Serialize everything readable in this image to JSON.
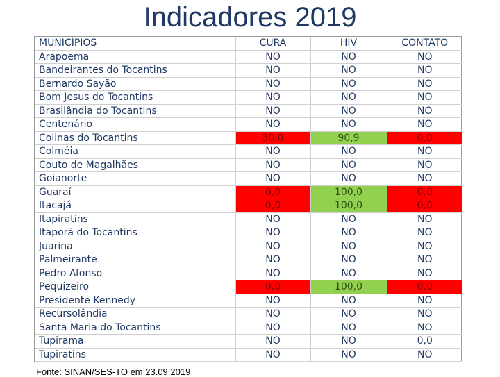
{
  "title": "Indicadores 2019",
  "table": {
    "headers": {
      "municipio": "MUNICÍPIOS",
      "cura": "CURA",
      "hiv": "HIV",
      "contato": "CONTATO"
    },
    "highlight_colors": {
      "red": "#ff0000",
      "green": "#92d050"
    },
    "rows": [
      {
        "municipio": "Arapoema",
        "cura": "NO",
        "hiv": "NO",
        "contato": "NO"
      },
      {
        "municipio": "Bandeirantes do Tocantins",
        "cura": "NO",
        "hiv": "NO",
        "contato": "NO"
      },
      {
        "municipio": "Bernardo Sayão",
        "cura": "NO",
        "hiv": "NO",
        "contato": "NO"
      },
      {
        "municipio": "Bom Jesus do Tocantins",
        "cura": "NO",
        "hiv": "NO",
        "contato": "NO"
      },
      {
        "municipio": "Brasilândia do Tocantins",
        "cura": "NO",
        "hiv": "NO",
        "contato": "NO"
      },
      {
        "municipio": "Centenário",
        "cura": "NO",
        "hiv": "NO",
        "contato": "NO"
      },
      {
        "municipio": "Colinas do Tocantins",
        "cura": "30,0",
        "hiv": "90,9",
        "contato": "0,0",
        "cura_color": "red",
        "hiv_color": "green",
        "contato_color": "red"
      },
      {
        "municipio": "Colméia",
        "cura": "NO",
        "hiv": "NO",
        "contato": "NO"
      },
      {
        "municipio": "Couto de Magalhães",
        "cura": "NO",
        "hiv": "NO",
        "contato": "NO"
      },
      {
        "municipio": "Goianorte",
        "cura": "NO",
        "hiv": "NO",
        "contato": "NO"
      },
      {
        "municipio": "Guaraí",
        "cura": "0,0",
        "hiv": "100,0",
        "contato": "0,0",
        "cura_color": "red",
        "hiv_color": "green",
        "contato_color": "red"
      },
      {
        "municipio": "Itacajá",
        "cura": "0,0",
        "hiv": "100,0",
        "contato": "0,0",
        "cura_color": "red",
        "hiv_color": "green",
        "contato_color": "red"
      },
      {
        "municipio": "Itapiratins",
        "cura": "NO",
        "hiv": "NO",
        "contato": "NO"
      },
      {
        "municipio": "Itaporã do Tocantins",
        "cura": "NO",
        "hiv": "NO",
        "contato": "NO"
      },
      {
        "municipio": "Juarina",
        "cura": "NO",
        "hiv": "NO",
        "contato": "NO"
      },
      {
        "municipio": "Palmeirante",
        "cura": "NO",
        "hiv": "NO",
        "contato": "NO"
      },
      {
        "municipio": "Pedro Afonso",
        "cura": "NO",
        "hiv": "NO",
        "contato": "NO"
      },
      {
        "municipio": "Pequizeiro",
        "cura": "0,0",
        "hiv": "100,0",
        "contato": "0,0",
        "cura_color": "red",
        "hiv_color": "green",
        "contato_color": "red"
      },
      {
        "municipio": "Presidente Kennedy",
        "cura": "NO",
        "hiv": "NO",
        "contato": "NO"
      },
      {
        "municipio": "Recursolândia",
        "cura": "NO",
        "hiv": "NO",
        "contato": "NO"
      },
      {
        "municipio": "Santa Maria do Tocantins",
        "cura": "NO",
        "hiv": "NO",
        "contato": "NO"
      },
      {
        "municipio": "Tupirama",
        "cura": "NO",
        "hiv": "NO",
        "contato": "0,0"
      },
      {
        "municipio": "Tupiratins",
        "cura": "NO",
        "hiv": "NO",
        "contato": "NO"
      }
    ]
  },
  "source": "Fonte: SINAN/SES-TO em 23.09.2019"
}
